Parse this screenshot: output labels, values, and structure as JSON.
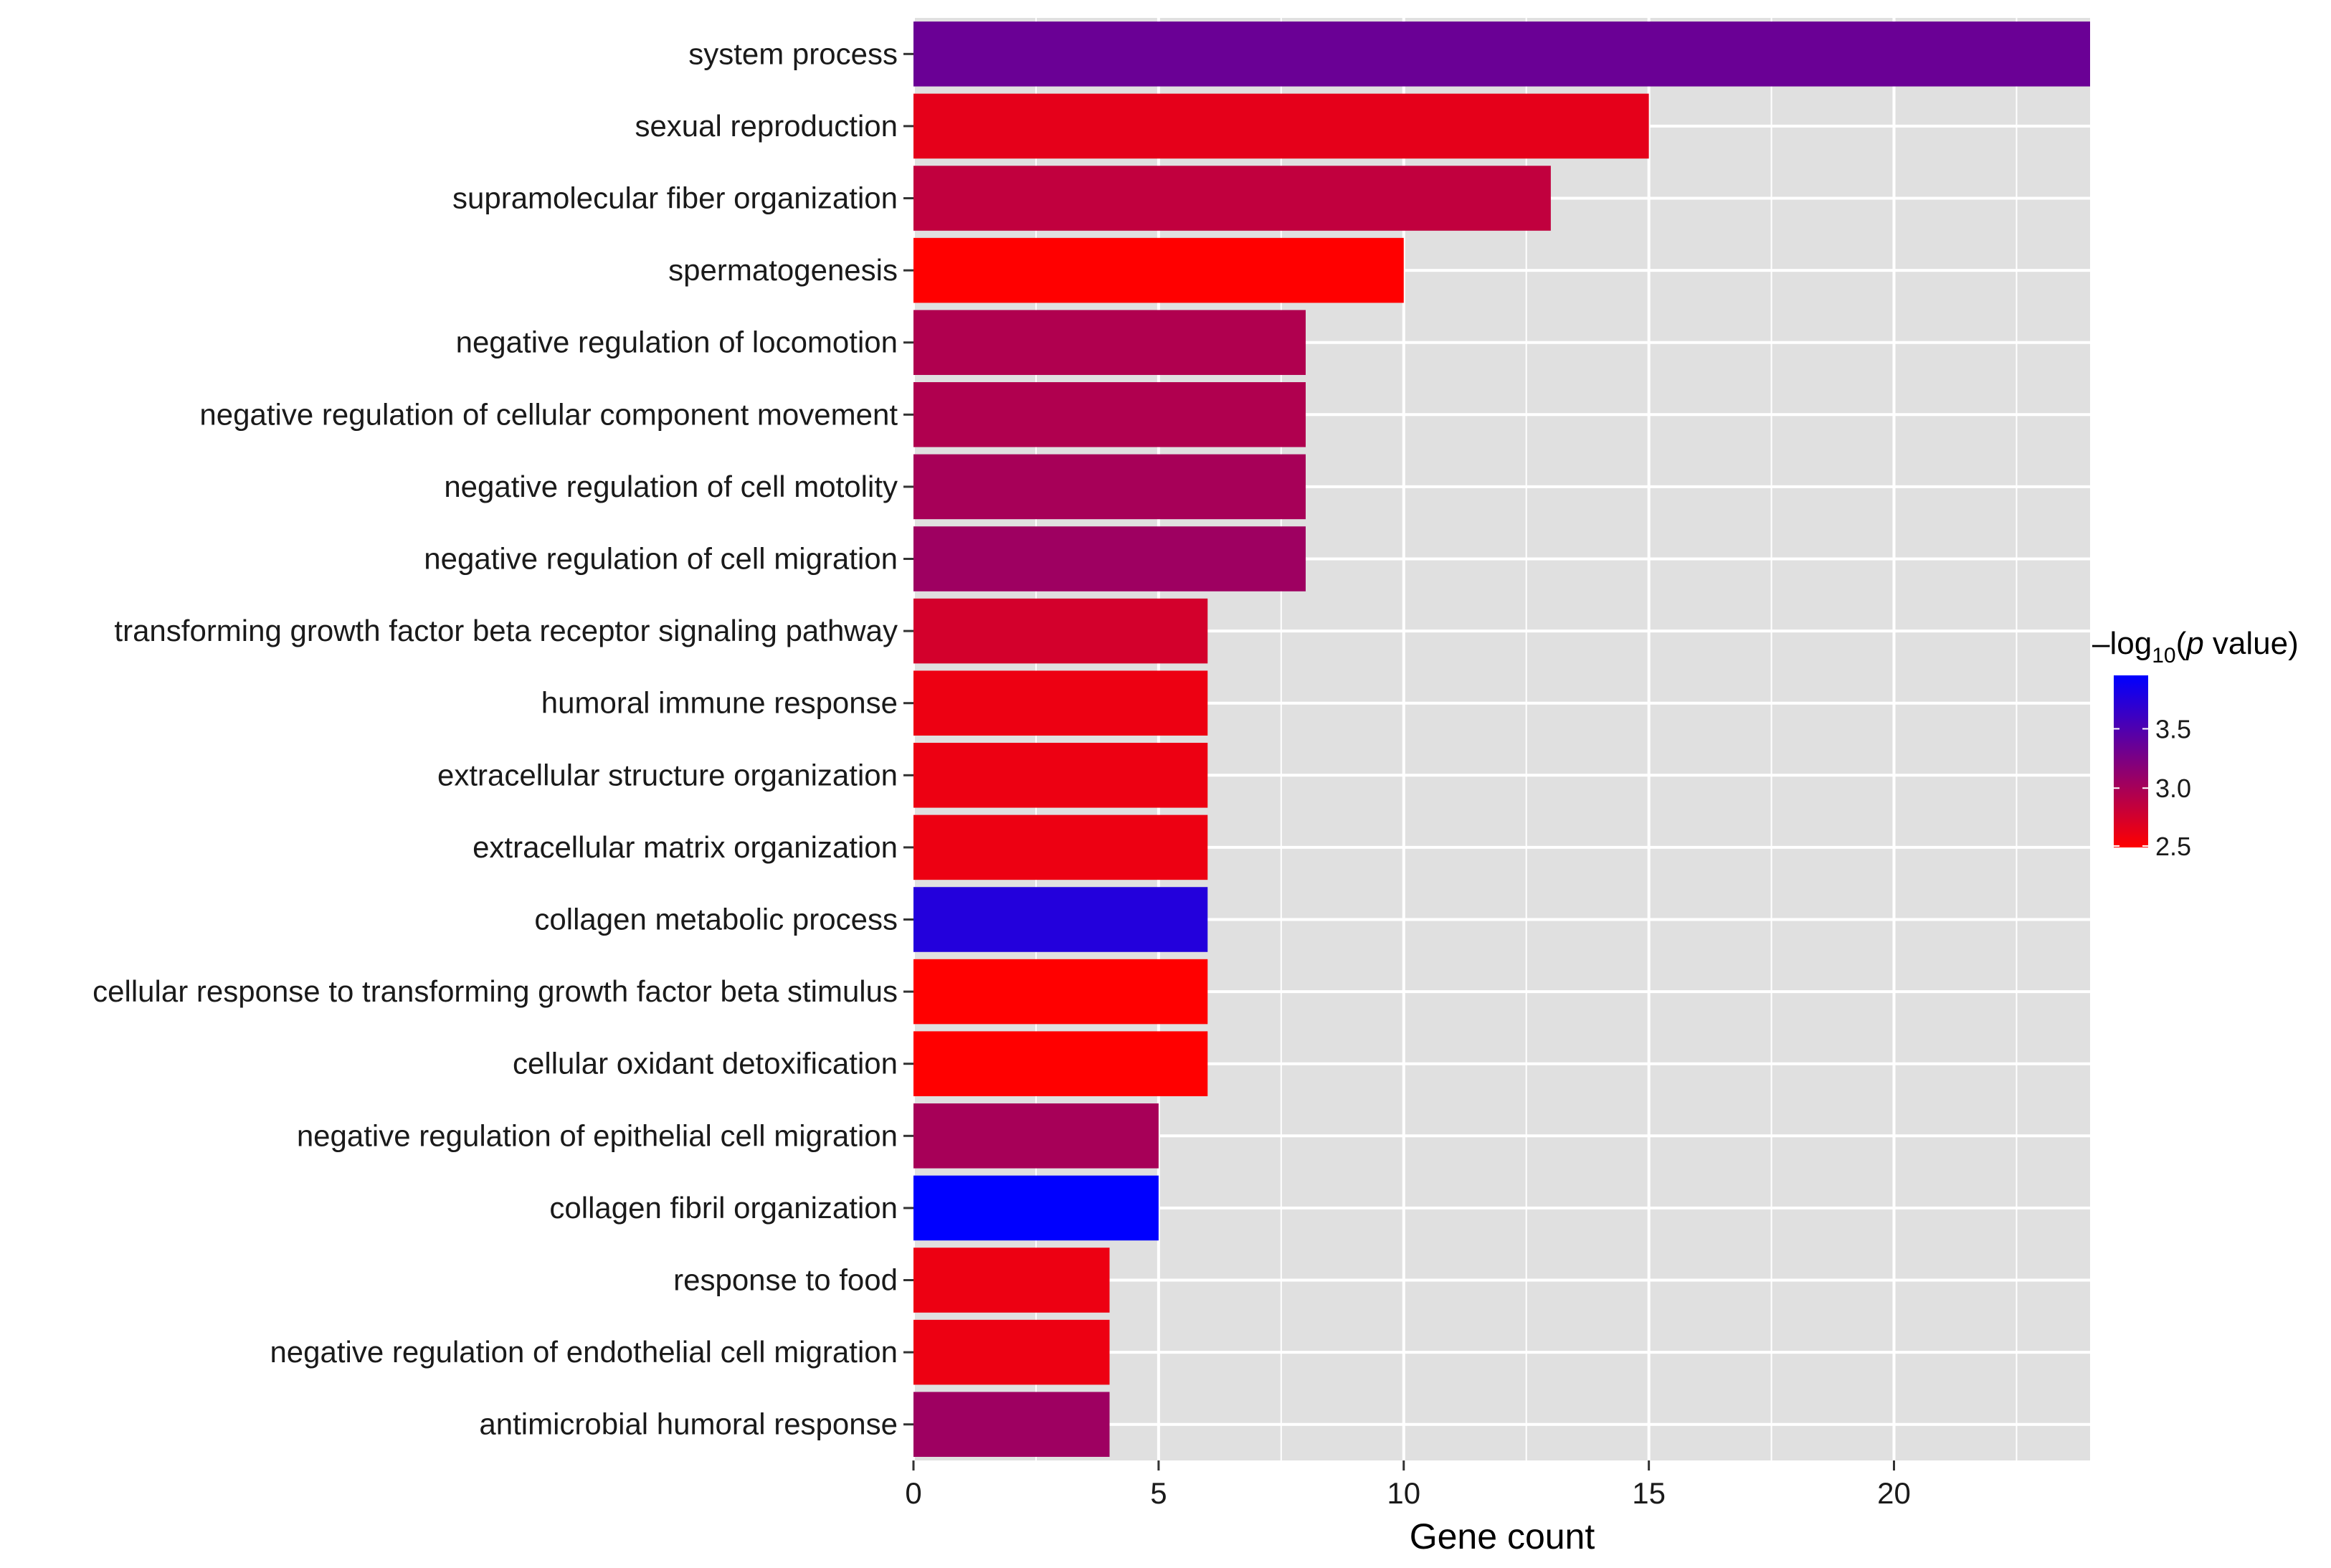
{
  "chart_data": {
    "type": "bar",
    "orientation": "horizontal",
    "title": "",
    "xlabel": "Gene count",
    "ylabel": "",
    "xlim": [
      0,
      24
    ],
    "x_ticks": [
      0,
      5,
      10,
      15,
      20
    ],
    "x_tick_labels": [
      "0",
      "5",
      "10",
      "15",
      "20"
    ],
    "grid": true,
    "categories": [
      "system process",
      "sexual reproduction",
      "supramolecular fiber organization",
      "spermatogenesis",
      "negative regulation of locomotion",
      "negative regulation of cellular component movement",
      "negative regulation of cell motolity",
      "negative regulation of cell migration",
      "transforming growth factor beta receptor signaling pathway",
      "humoral immune response",
      "extracellular structure organization",
      "extracellular matrix organization",
      "collagen metabolic process",
      "cellular response to transforming growth factor beta stimulus",
      "cellular oxidant detoxification",
      "negative regulation of epithelial cell migration",
      "collagen fibril organization",
      "response to food",
      "negative regulation of endothelial cell migration",
      "antimicrobial humoral response"
    ],
    "values": [
      24,
      15,
      13,
      10,
      8,
      8,
      8,
      8,
      6,
      6,
      6,
      6,
      6,
      6,
      6,
      5,
      5,
      4,
      4,
      4
    ],
    "color_values": [
      3.35,
      2.65,
      2.85,
      2.5,
      2.95,
      2.95,
      3.0,
      3.05,
      2.75,
      2.6,
      2.6,
      2.6,
      3.75,
      2.5,
      2.5,
      3.0,
      3.95,
      2.6,
      2.6,
      3.05
    ],
    "legend": {
      "title_prefix": "–log",
      "title_subscript": "10",
      "title_open": "(",
      "title_italic": "p",
      "title_suffix": " value)",
      "range": [
        2.5,
        3.95
      ],
      "ticks": [
        3.5,
        3.0,
        2.5
      ],
      "tick_labels": [
        "3.5",
        "3.0",
        "2.5"
      ],
      "low_color": "#ff0000",
      "high_color": "#0000ff",
      "placement": "right"
    },
    "colors": {
      "panel_background": "#e0e0e0",
      "grid_line": "#ffffff"
    }
  }
}
